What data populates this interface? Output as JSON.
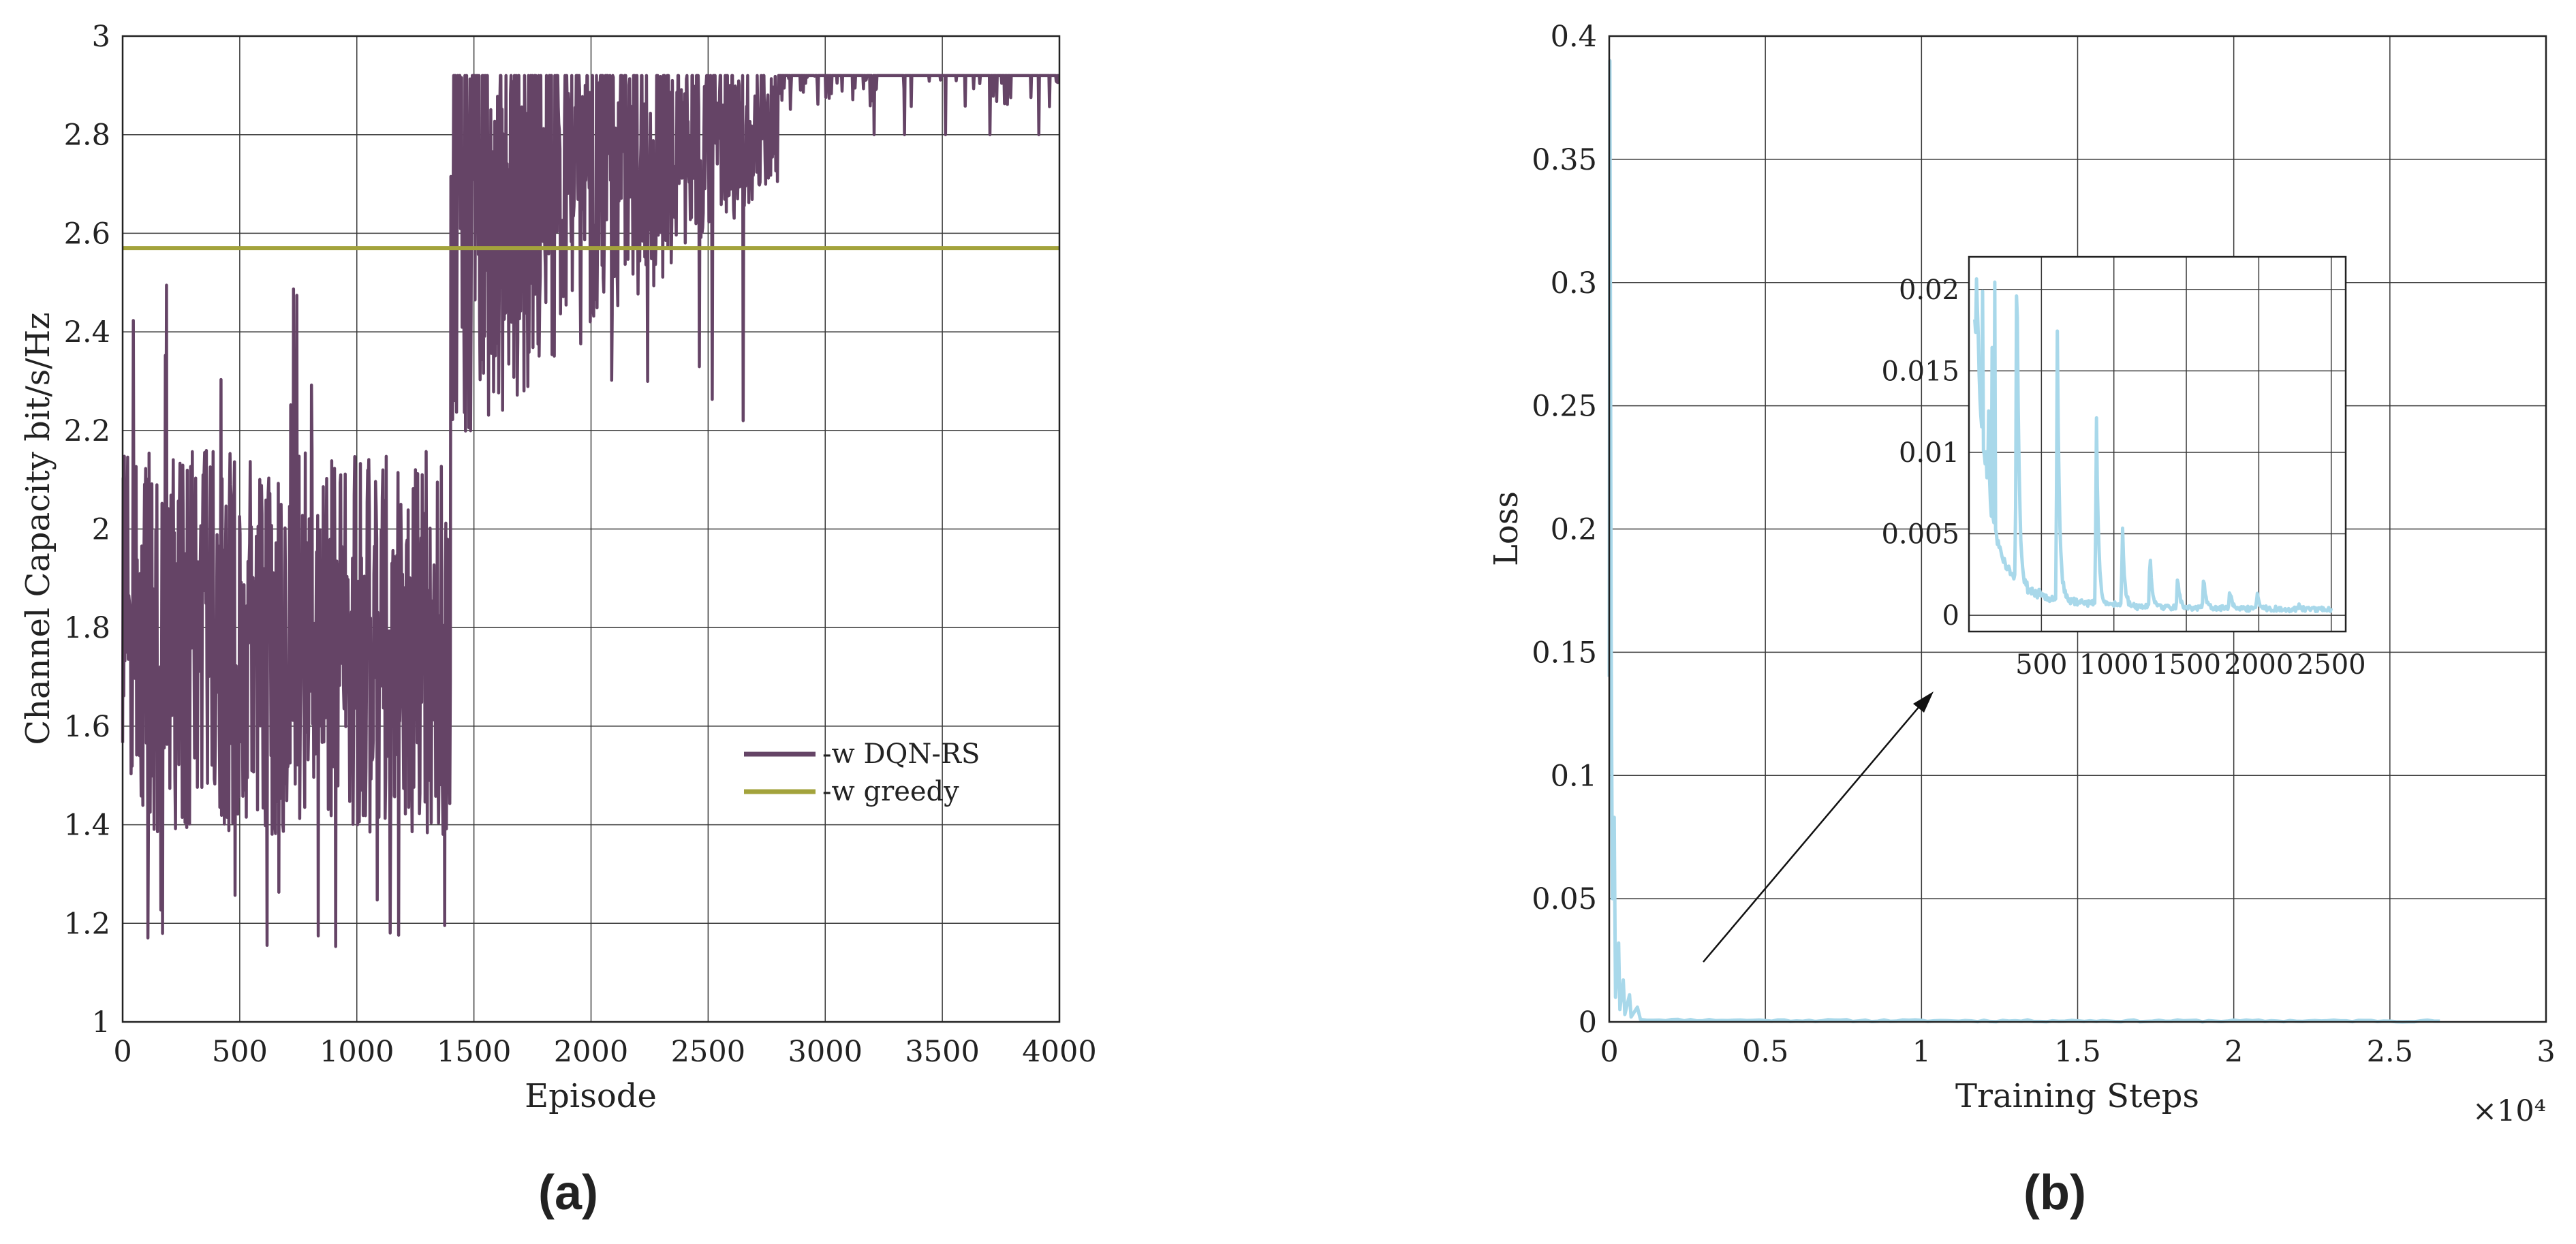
{
  "chart_data": [
    {
      "type": "line",
      "panel_label": "(a)",
      "xlabel": "Episode",
      "ylabel": "Channel Capacity bit/s/Hz",
      "xlim": [
        0,
        4000
      ],
      "ylim": [
        1,
        3
      ],
      "xticks": [
        "0",
        "500",
        "1000",
        "1500",
        "2000",
        "2500",
        "3000",
        "3500",
        "4000"
      ],
      "yticks": [
        "1",
        "1.2",
        "1.4",
        "1.6",
        "1.8",
        "2",
        "2.2",
        "2.4",
        "2.6",
        "2.8",
        "3"
      ],
      "grid": true,
      "legend_position": "lower-right",
      "series": [
        {
          "name": "-w DQN-RS",
          "color": "#654466",
          "segments": [
            {
              "x_range": [
                0,
                1400
              ],
              "y_low": 1.2,
              "y_high": 2.2,
              "spikes_to": 2.5
            },
            {
              "x_range": [
                1400,
                2800
              ],
              "y_low": 2.2,
              "y_high": 2.92
            },
            {
              "x_range": [
                2800,
                4000
              ],
              "y_low": 2.86,
              "y_high": 2.92
            }
          ]
        },
        {
          "name": "-w greedy",
          "color": "#a3a33c",
          "y": 2.57
        }
      ]
    },
    {
      "type": "line",
      "panel_label": "(b)",
      "xlabel": "Training Steps",
      "ylabel": "Loss",
      "x_multiplier": "×10⁴",
      "xlim": [
        0,
        3
      ],
      "ylim": [
        0,
        0.4
      ],
      "xticks": [
        "0",
        "0.5",
        "1",
        "1.5",
        "2",
        "2.5",
        "3"
      ],
      "yticks": [
        "0",
        "0.05",
        "0.1",
        "0.15",
        "0.2",
        "0.25",
        "0.3",
        "0.35",
        "0.4"
      ],
      "grid": true,
      "series": [
        {
          "color": "#a8d8ea",
          "x_end": 2.67,
          "peak": 0.39,
          "converged": 0.0
        }
      ],
      "inset": {
        "xlim": [
          0,
          2600
        ],
        "ylim": [
          -0.001,
          0.022
        ],
        "xticks": [
          "500",
          "1000",
          "1500",
          "2000",
          "2500"
        ],
        "yticks": [
          "0",
          "0.005",
          "0.01",
          "0.015",
          "0.02"
        ],
        "spikes": [
          {
            "x": 330,
            "y": 0.022
          },
          {
            "x": 610,
            "y": 0.0168
          },
          {
            "x": 880,
            "y": 0.0117
          },
          {
            "x": 1060,
            "y": 0.0051
          },
          {
            "x": 1250,
            "y": 0.0038
          },
          {
            "x": 1440,
            "y": 0.0026
          },
          {
            "x": 1620,
            "y": 0.0024
          },
          {
            "x": 1800,
            "y": 0.0017
          },
          {
            "x": 1990,
            "y": 0.0015
          },
          {
            "x": 2280,
            "y": 0.0007
          }
        ]
      }
    }
  ]
}
